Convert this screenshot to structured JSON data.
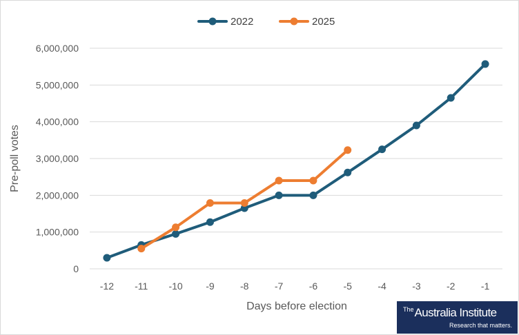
{
  "chart_data": {
    "type": "line",
    "xlabel": "Days before election",
    "ylabel": "Pre-poll votes",
    "x": [
      -12,
      -11,
      -10,
      -9,
      -8,
      -7,
      -6,
      -5,
      -4,
      -3,
      -2,
      -1
    ],
    "x_tick_labels": [
      "-12",
      "-11",
      "-10",
      "-9",
      "-8",
      "-7",
      "-6",
      "-5",
      "-4",
      "-3",
      "-2",
      "-1"
    ],
    "ylim": [
      0,
      6000000
    ],
    "y_ticks": [
      0,
      1000000,
      2000000,
      3000000,
      4000000,
      5000000,
      6000000
    ],
    "y_tick_labels": [
      "0",
      "1,000,000",
      "2,000,000",
      "3,000,000",
      "4,000,000",
      "5,000,000",
      "6,000,000"
    ],
    "grid": "horizontal",
    "legend_position": "top-center",
    "series": [
      {
        "name": "2022",
        "color": "#1f5c7a",
        "x": [
          -12,
          -11,
          -10,
          -9,
          -8,
          -7,
          -6,
          -5,
          -4,
          -3,
          -2,
          -1
        ],
        "values": [
          300000,
          650000,
          950000,
          1270000,
          1650000,
          2000000,
          2000000,
          2620000,
          3250000,
          3900000,
          4650000,
          5570000
        ]
      },
      {
        "name": "2025",
        "color": "#ed7d31",
        "x": [
          -11,
          -10,
          -9,
          -8,
          -7,
          -6,
          -5
        ],
        "values": [
          550000,
          1130000,
          1790000,
          1790000,
          2400000,
          2400000,
          3230000
        ]
      }
    ]
  },
  "logo": {
    "brand": "Australia Institute",
    "the": "The",
    "tagline": "Research that matters."
  }
}
